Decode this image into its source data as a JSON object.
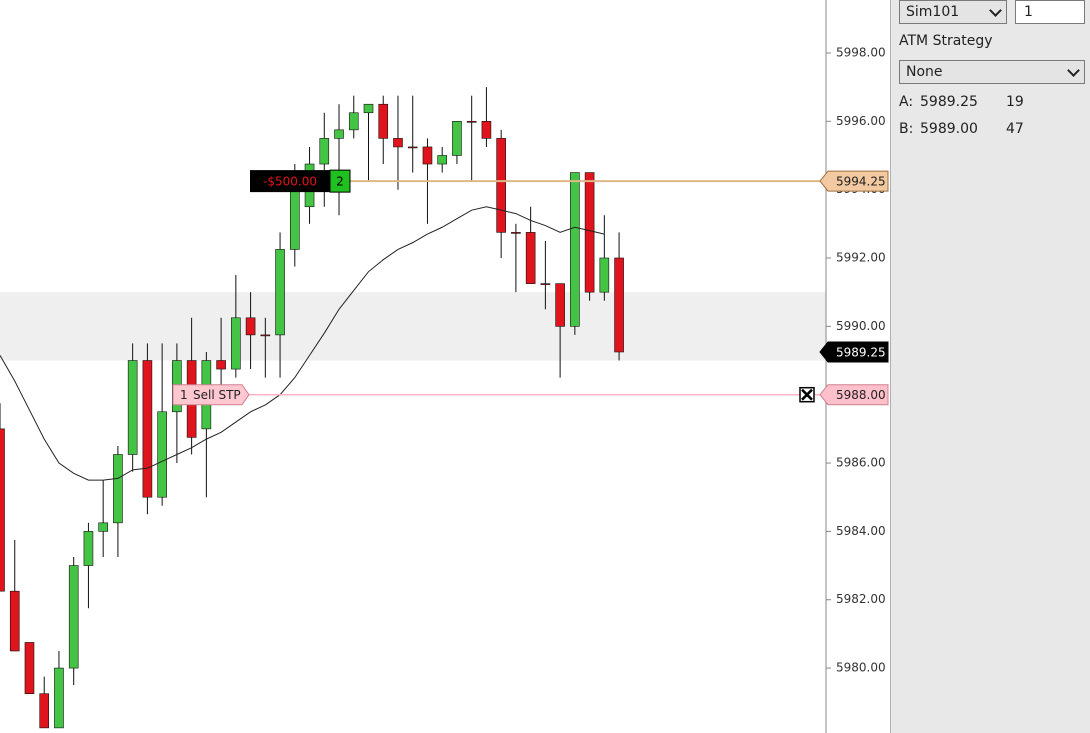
{
  "chart_data": {
    "type": "candlestick",
    "open": [
      5987.0,
      5982.25,
      5980.75,
      5979.25,
      5978.25,
      5980.0,
      5983.0,
      5984.0,
      5984.25,
      5986.25,
      5989.0,
      5985.0,
      5987.5,
      5989.0,
      5987.0,
      5989.0,
      5988.75,
      5990.25,
      5989.75,
      5989.75,
      5992.25,
      5993.5,
      5994.75,
      5995.5,
      5995.75,
      5996.25,
      5996.5,
      5995.5,
      5995.25,
      5995.25,
      5994.75,
      5995.0,
      5996.0,
      5996.0,
      5995.5,
      5992.75,
      5992.75,
      5991.25,
      5991.25,
      5990.0,
      5994.5,
      5991.0,
      5992.0
    ],
    "high": [
      5987.75,
      5983.75,
      5980.75,
      5979.75,
      5980.5,
      5983.25,
      5984.25,
      5985.5,
      5986.5,
      5989.5,
      5989.5,
      5989.5,
      5989.5,
      5990.25,
      5989.25,
      5990.25,
      5991.5,
      5991.0,
      5990.25,
      5992.75,
      5994.75,
      5995.25,
      5996.25,
      5996.5,
      5996.75,
      5996.5,
      5996.75,
      5996.75,
      5996.75,
      5995.5,
      5995.25,
      5996.0,
      5996.75,
      5997.0,
      5995.75,
      5993.0,
      5993.5,
      5992.5,
      5991.25,
      5994.5,
      5994.5,
      5993.25,
      5992.75
    ],
    "low": [
      5982.25,
      5980.5,
      5979.25,
      5978.25,
      5978.25,
      5979.5,
      5981.75,
      5983.25,
      5983.25,
      5985.75,
      5984.5,
      5984.75,
      5986.0,
      5986.25,
      5985.0,
      5988.0,
      5988.5,
      5988.75,
      5988.5,
      5988.5,
      5991.75,
      5993.0,
      5993.5,
      5993.25,
      5995.5,
      5994.25,
      5994.75,
      5994.0,
      5994.5,
      5993.0,
      5994.5,
      5994.75,
      5994.25,
      5995.25,
      5992.0,
      5991.0,
      5991.25,
      5990.5,
      5988.5,
      5989.75,
      5990.75,
      5990.75,
      5989.0
    ],
    "close": [
      5982.25,
      5980.5,
      5979.25,
      5978.25,
      5980.0,
      5983.0,
      5984.0,
      5984.25,
      5986.25,
      5989.0,
      5985.0,
      5987.5,
      5989.0,
      5986.75,
      5989.0,
      5988.75,
      5990.25,
      5989.75,
      5989.75,
      5992.25,
      5994.0,
      5994.75,
      5995.5,
      5995.75,
      5996.25,
      5996.5,
      5995.5,
      5995.25,
      5995.25,
      5994.75,
      5995.0,
      5996.0,
      5996.0,
      5995.5,
      5992.75,
      5992.75,
      5991.25,
      5991.25,
      5990.0,
      5994.5,
      5991.0,
      5992.0,
      5989.25
    ],
    "up_color": "#44c444",
    "down_color": "#e0141c",
    "sma": {
      "color": "#222222",
      "values": [
        5989.15,
        5988.4,
        5987.55,
        5986.7,
        5986.0,
        5985.7,
        5985.5,
        5985.5,
        5985.55,
        5985.8,
        5985.85,
        5986.05,
        5986.25,
        5986.45,
        5986.7,
        5986.9,
        5987.2,
        5987.5,
        5987.7,
        5988.0,
        5988.5,
        5989.15,
        5989.8,
        5990.5,
        5991.05,
        5991.6,
        5991.95,
        5992.25,
        5992.45,
        5992.7,
        5992.9,
        5993.15,
        5993.4,
        5993.5,
        5993.4,
        5993.3,
        5993.1,
        5992.95,
        5992.75,
        5992.9,
        5992.8,
        5992.7,
        null
      ]
    },
    "shaded_range": [
      5989.0,
      5991.0
    ],
    "ylim": [
      5978.1,
      5999.55
    ],
    "yticks": [
      {
        "value": 5980,
        "label": "5980.00"
      },
      {
        "value": 5982,
        "label": "5982.00"
      },
      {
        "value": 5984,
        "label": "5984.00"
      },
      {
        "value": 5986,
        "label": "5986.00"
      },
      {
        "value": 5988,
        "label": "5988.00"
      },
      {
        "value": 5990,
        "label": "5990.00"
      },
      {
        "value": 5992,
        "label": "5992.00"
      },
      {
        "value": 5994,
        "label": "5994.00"
      },
      {
        "value": 5996,
        "label": "5996.00"
      },
      {
        "value": 5998,
        "label": "5998.00"
      }
    ],
    "position": {
      "pnl": "-$500.00",
      "quantity": 2,
      "price": 5994.25,
      "color": "#deb887"
    },
    "stop_order": {
      "quantity": 1,
      "label": "Sell STP",
      "price": {
        "value": 5988,
        "label": "5988.00"
      },
      "color": "#ffb6c1"
    },
    "last_price": 5989.25
  },
  "panel": {
    "account": "Sim101",
    "quantity": 1,
    "atm_title": "ATM Strategy",
    "atm_value": "None",
    "ask": {
      "label": "A:",
      "price": "5989.25",
      "size": 19
    },
    "bid": {
      "label": "B:",
      "price": "5989.00",
      "size": 47
    }
  }
}
